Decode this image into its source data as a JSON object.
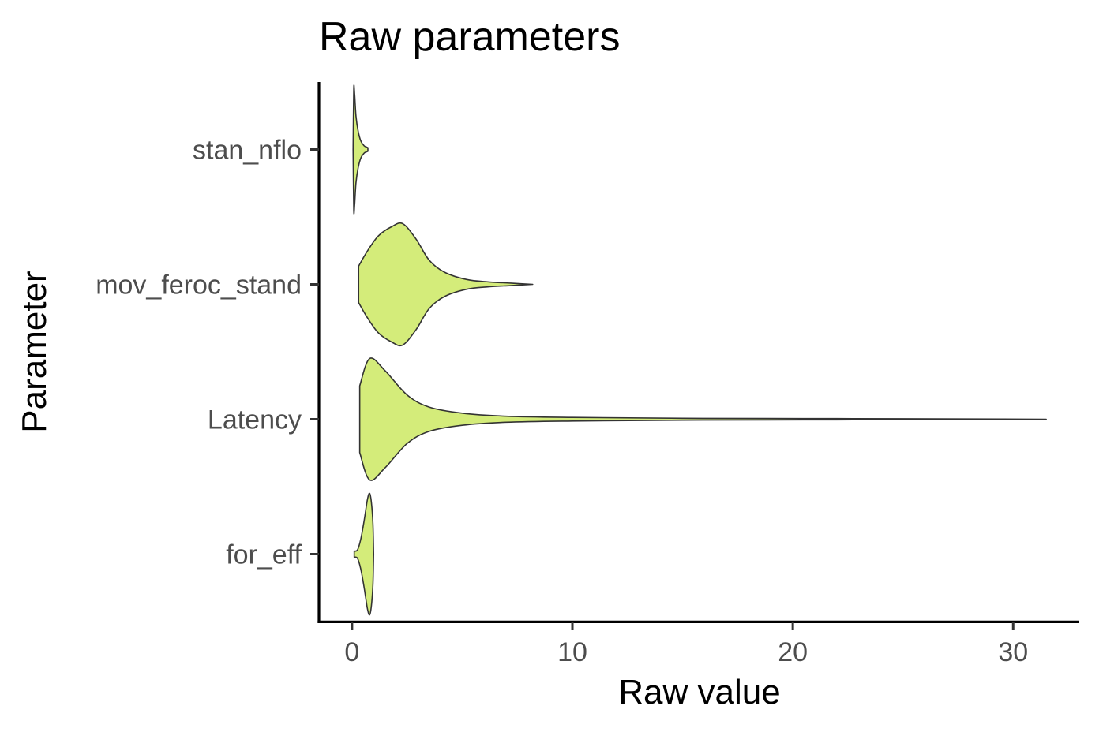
{
  "chart_data": {
    "type": "violin",
    "orientation": "horizontal",
    "title": "Raw parameters",
    "xlabel": "Raw value",
    "ylabel": "Parameter",
    "xlim": [
      -1.5,
      33.0
    ],
    "x_ticks": [
      0,
      10,
      20,
      30
    ],
    "categories": [
      "stan_nflo",
      "mov_feroc_stand",
      "Latency",
      "for_eff"
    ],
    "fill_color": "#d4ec7a",
    "outline_color": "#333333",
    "grid": false,
    "legend": "none",
    "violins": [
      {
        "category": "stan_nflo",
        "min": 0.05,
        "max": 0.72,
        "profile": [
          [
            0.05,
            0.0
          ],
          [
            0.08,
            1.0
          ],
          [
            0.12,
            0.9
          ],
          [
            0.18,
            0.55
          ],
          [
            0.28,
            0.3
          ],
          [
            0.4,
            0.14
          ],
          [
            0.55,
            0.06
          ],
          [
            0.66,
            0.04
          ],
          [
            0.72,
            0.03
          ]
        ]
      },
      {
        "category": "mov_feroc_stand",
        "min": 0.3,
        "max": 8.2,
        "profile": [
          [
            0.3,
            0.3
          ],
          [
            0.7,
            0.55
          ],
          [
            1.2,
            0.8
          ],
          [
            1.8,
            0.95
          ],
          [
            2.3,
            1.0
          ],
          [
            2.9,
            0.75
          ],
          [
            3.5,
            0.4
          ],
          [
            4.2,
            0.2
          ],
          [
            5.2,
            0.08
          ],
          [
            6.2,
            0.04
          ],
          [
            7.2,
            0.02
          ],
          [
            8.2,
            0.0
          ]
        ]
      },
      {
        "category": "Latency",
        "min": 0.35,
        "max": 31.5,
        "profile": [
          [
            0.35,
            0.55
          ],
          [
            0.8,
            1.0
          ],
          [
            1.5,
            0.8
          ],
          [
            2.5,
            0.4
          ],
          [
            3.5,
            0.2
          ],
          [
            5.0,
            0.1
          ],
          [
            7.0,
            0.05
          ],
          [
            10.0,
            0.03
          ],
          [
            15.0,
            0.015
          ],
          [
            22.0,
            0.01
          ],
          [
            28.0,
            0.005
          ],
          [
            31.5,
            0.0
          ]
        ]
      },
      {
        "category": "for_eff",
        "min": 0.1,
        "max": 0.98,
        "profile": [
          [
            0.1,
            0.05
          ],
          [
            0.25,
            0.07
          ],
          [
            0.4,
            0.25
          ],
          [
            0.55,
            0.55
          ],
          [
            0.7,
            0.9
          ],
          [
            0.8,
            1.0
          ],
          [
            0.88,
            0.85
          ],
          [
            0.95,
            0.5
          ],
          [
            0.98,
            0.0
          ]
        ]
      }
    ]
  }
}
